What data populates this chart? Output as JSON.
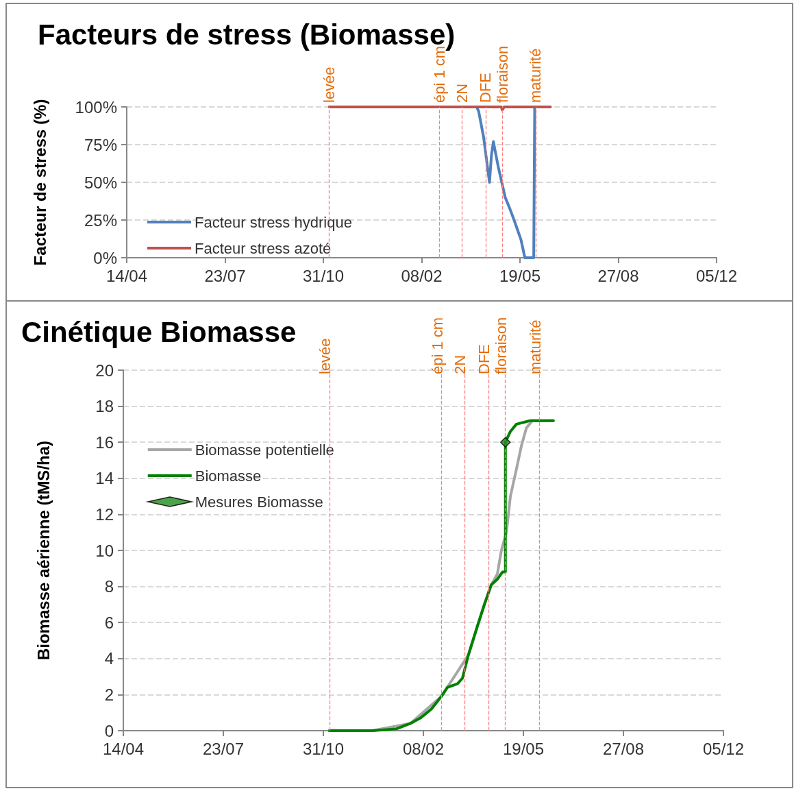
{
  "chart_data": [
    {
      "type": "line",
      "title": "Facteurs de stress (Biomasse)",
      "ylabel": "Facteur de stress (%)",
      "xlim": [
        "2012-04-14",
        "2013-12-05"
      ],
      "xticks": [
        {
          "value": "2012-04-14",
          "label": "14/04"
        },
        {
          "value": "2012-07-23",
          "label": "23/07"
        },
        {
          "value": "2012-10-31",
          "label": "31/10"
        },
        {
          "value": "2013-02-08",
          "label": "08/02"
        },
        {
          "value": "2013-05-19",
          "label": "19/05"
        },
        {
          "value": "2013-08-27",
          "label": "27/08"
        },
        {
          "value": "2013-12-05",
          "label": "05/12"
        }
      ],
      "ylim": [
        0,
        100
      ],
      "yticks": [
        {
          "value": 0,
          "label": "0%"
        },
        {
          "value": 25,
          "label": "25%"
        },
        {
          "value": 50,
          "label": "50%"
        },
        {
          "value": 75,
          "label": "75%"
        },
        {
          "value": 100,
          "label": "100%"
        }
      ],
      "grid": "y",
      "legend": "bottom left",
      "marker": "none",
      "line_style": "solid",
      "series": [
        {
          "name": "Facteur stress hydrique",
          "color": "#4f81bd",
          "x": [
            "2013-04-05",
            "2013-04-07",
            "2013-04-12",
            "2013-04-18",
            "2013-04-20",
            "2013-04-22",
            "2013-04-24",
            "2013-04-27",
            "2013-05-04",
            "2013-05-09",
            "2013-05-13",
            "2013-05-20",
            "2013-05-24",
            "2013-06-02",
            "2013-06-03"
          ],
          "values": [
            100,
            97,
            80,
            50,
            68,
            77,
            70,
            60,
            40,
            32,
            25,
            12,
            0,
            0,
            100
          ]
        },
        {
          "name": "Facteur stress azoté",
          "color": "#c0504d",
          "x": [
            "2012-11-06",
            "2013-04-30",
            "2013-05-01",
            "2013-05-03",
            "2013-06-19"
          ],
          "values": [
            100,
            100,
            98,
            100,
            100
          ]
        }
      ],
      "ref_lines": [
        {
          "axis": "x",
          "value": "2012-11-06",
          "label": "levée",
          "color": "#ff7f7f",
          "line_style": "dashed"
        },
        {
          "axis": "x",
          "value": "2013-02-26",
          "label": "épi 1 cm",
          "color": "#ff7f7f",
          "line_style": "dashed"
        },
        {
          "axis": "x",
          "value": "2013-03-21",
          "label": "2N",
          "color": "#ff7f7f",
          "line_style": "dashed"
        },
        {
          "axis": "x",
          "value": "2013-04-14",
          "label": "DFE",
          "color": "#ff7f7f",
          "line_style": "dashed"
        },
        {
          "axis": "x",
          "value": "2013-05-01",
          "label": "floraison",
          "color": "#ff7f7f",
          "line_style": "dashed"
        },
        {
          "axis": "x",
          "value": "2013-06-04",
          "label": "maturité",
          "color": "#ff7f7f",
          "line_style": "dashed"
        }
      ]
    },
    {
      "type": "line",
      "title": "Cinétique Biomasse",
      "ylabel": "Biomasse aérienne (tMS/ha)",
      "xlim": [
        "2012-04-14",
        "2013-12-05"
      ],
      "xticks": [
        {
          "value": "2012-04-14",
          "label": "14/04"
        },
        {
          "value": "2012-07-23",
          "label": "23/07"
        },
        {
          "value": "2012-10-31",
          "label": "31/10"
        },
        {
          "value": "2013-02-08",
          "label": "08/02"
        },
        {
          "value": "2013-05-19",
          "label": "19/05"
        },
        {
          "value": "2013-08-27",
          "label": "27/08"
        },
        {
          "value": "2013-12-05",
          "label": "05/12"
        }
      ],
      "ylim": [
        0,
        20
      ],
      "yticks": [
        0,
        2,
        4,
        6,
        8,
        10,
        12,
        14,
        16,
        18,
        20
      ],
      "grid": "y",
      "legend": "top left",
      "marker": "none",
      "line_style": "solid",
      "series": [
        {
          "name": "Biomasse potentielle",
          "color": "#a6a6a6",
          "x": [
            "2012-11-06",
            "2012-12-19",
            "2013-01-26",
            "2013-02-26",
            "2013-03-25",
            "2013-04-10",
            "2013-04-16",
            "2013-04-23",
            "2013-04-27",
            "2013-05-02",
            "2013-05-06",
            "2013-05-12",
            "2013-05-17",
            "2013-05-22",
            "2013-05-28",
            "2013-06-02",
            "2013-06-18"
          ],
          "values": [
            0,
            0,
            0.4,
            1.9,
            4.2,
            7,
            8,
            8.7,
            10,
            11,
            13,
            14.5,
            15.8,
            16.8,
            17.2,
            17.2,
            17.2
          ]
        },
        {
          "name": "Biomasse",
          "color": "#008000",
          "x": [
            "2012-11-06",
            "2012-12-19",
            "2013-01-12",
            "2013-01-26",
            "2013-02-05",
            "2013-02-16",
            "2013-02-26",
            "2013-03-04",
            "2013-03-14",
            "2013-03-19",
            "2013-03-25",
            "2013-04-03",
            "2013-04-10",
            "2013-04-17",
            "2013-04-23",
            "2013-04-28",
            "2013-05-01",
            "2013-05-01",
            "2013-05-06",
            "2013-05-12",
            "2013-05-19",
            "2013-05-26",
            "2013-06-18"
          ],
          "values": [
            0,
            0,
            0.1,
            0.4,
            0.7,
            1.2,
            1.9,
            2.4,
            2.6,
            2.9,
            4.2,
            5.8,
            7,
            8.1,
            8.4,
            8.8,
            8.8,
            16,
            16.6,
            17,
            17.1,
            17.2,
            17.2
          ]
        },
        {
          "name": "Mesures Biomasse",
          "type": "scatter",
          "marker": "diamond",
          "color": "#1e8c1e",
          "x": [
            "2013-05-01"
          ],
          "values": [
            16
          ]
        }
      ],
      "ref_lines": [
        {
          "axis": "x",
          "value": "2012-11-06",
          "label": "levée",
          "color": "#ff7f7f",
          "line_style": "dashed"
        },
        {
          "axis": "x",
          "value": "2013-02-26",
          "label": "épi 1 cm",
          "color": "#ff7f7f",
          "line_style": "dashed"
        },
        {
          "axis": "x",
          "value": "2013-03-21",
          "label": "2N",
          "color": "#ff7f7f",
          "line_style": "dashed"
        },
        {
          "axis": "x",
          "value": "2013-04-14",
          "label": "DFE",
          "color": "#ff7f7f",
          "line_style": "dashed"
        },
        {
          "axis": "x",
          "value": "2013-05-01",
          "label": "floraison",
          "color": "#ff7f7f",
          "line_style": "dashed"
        },
        {
          "axis": "x",
          "value": "2013-06-04",
          "label": "maturité",
          "color": "#ff7f7f",
          "line_style": "dashed"
        }
      ]
    }
  ]
}
